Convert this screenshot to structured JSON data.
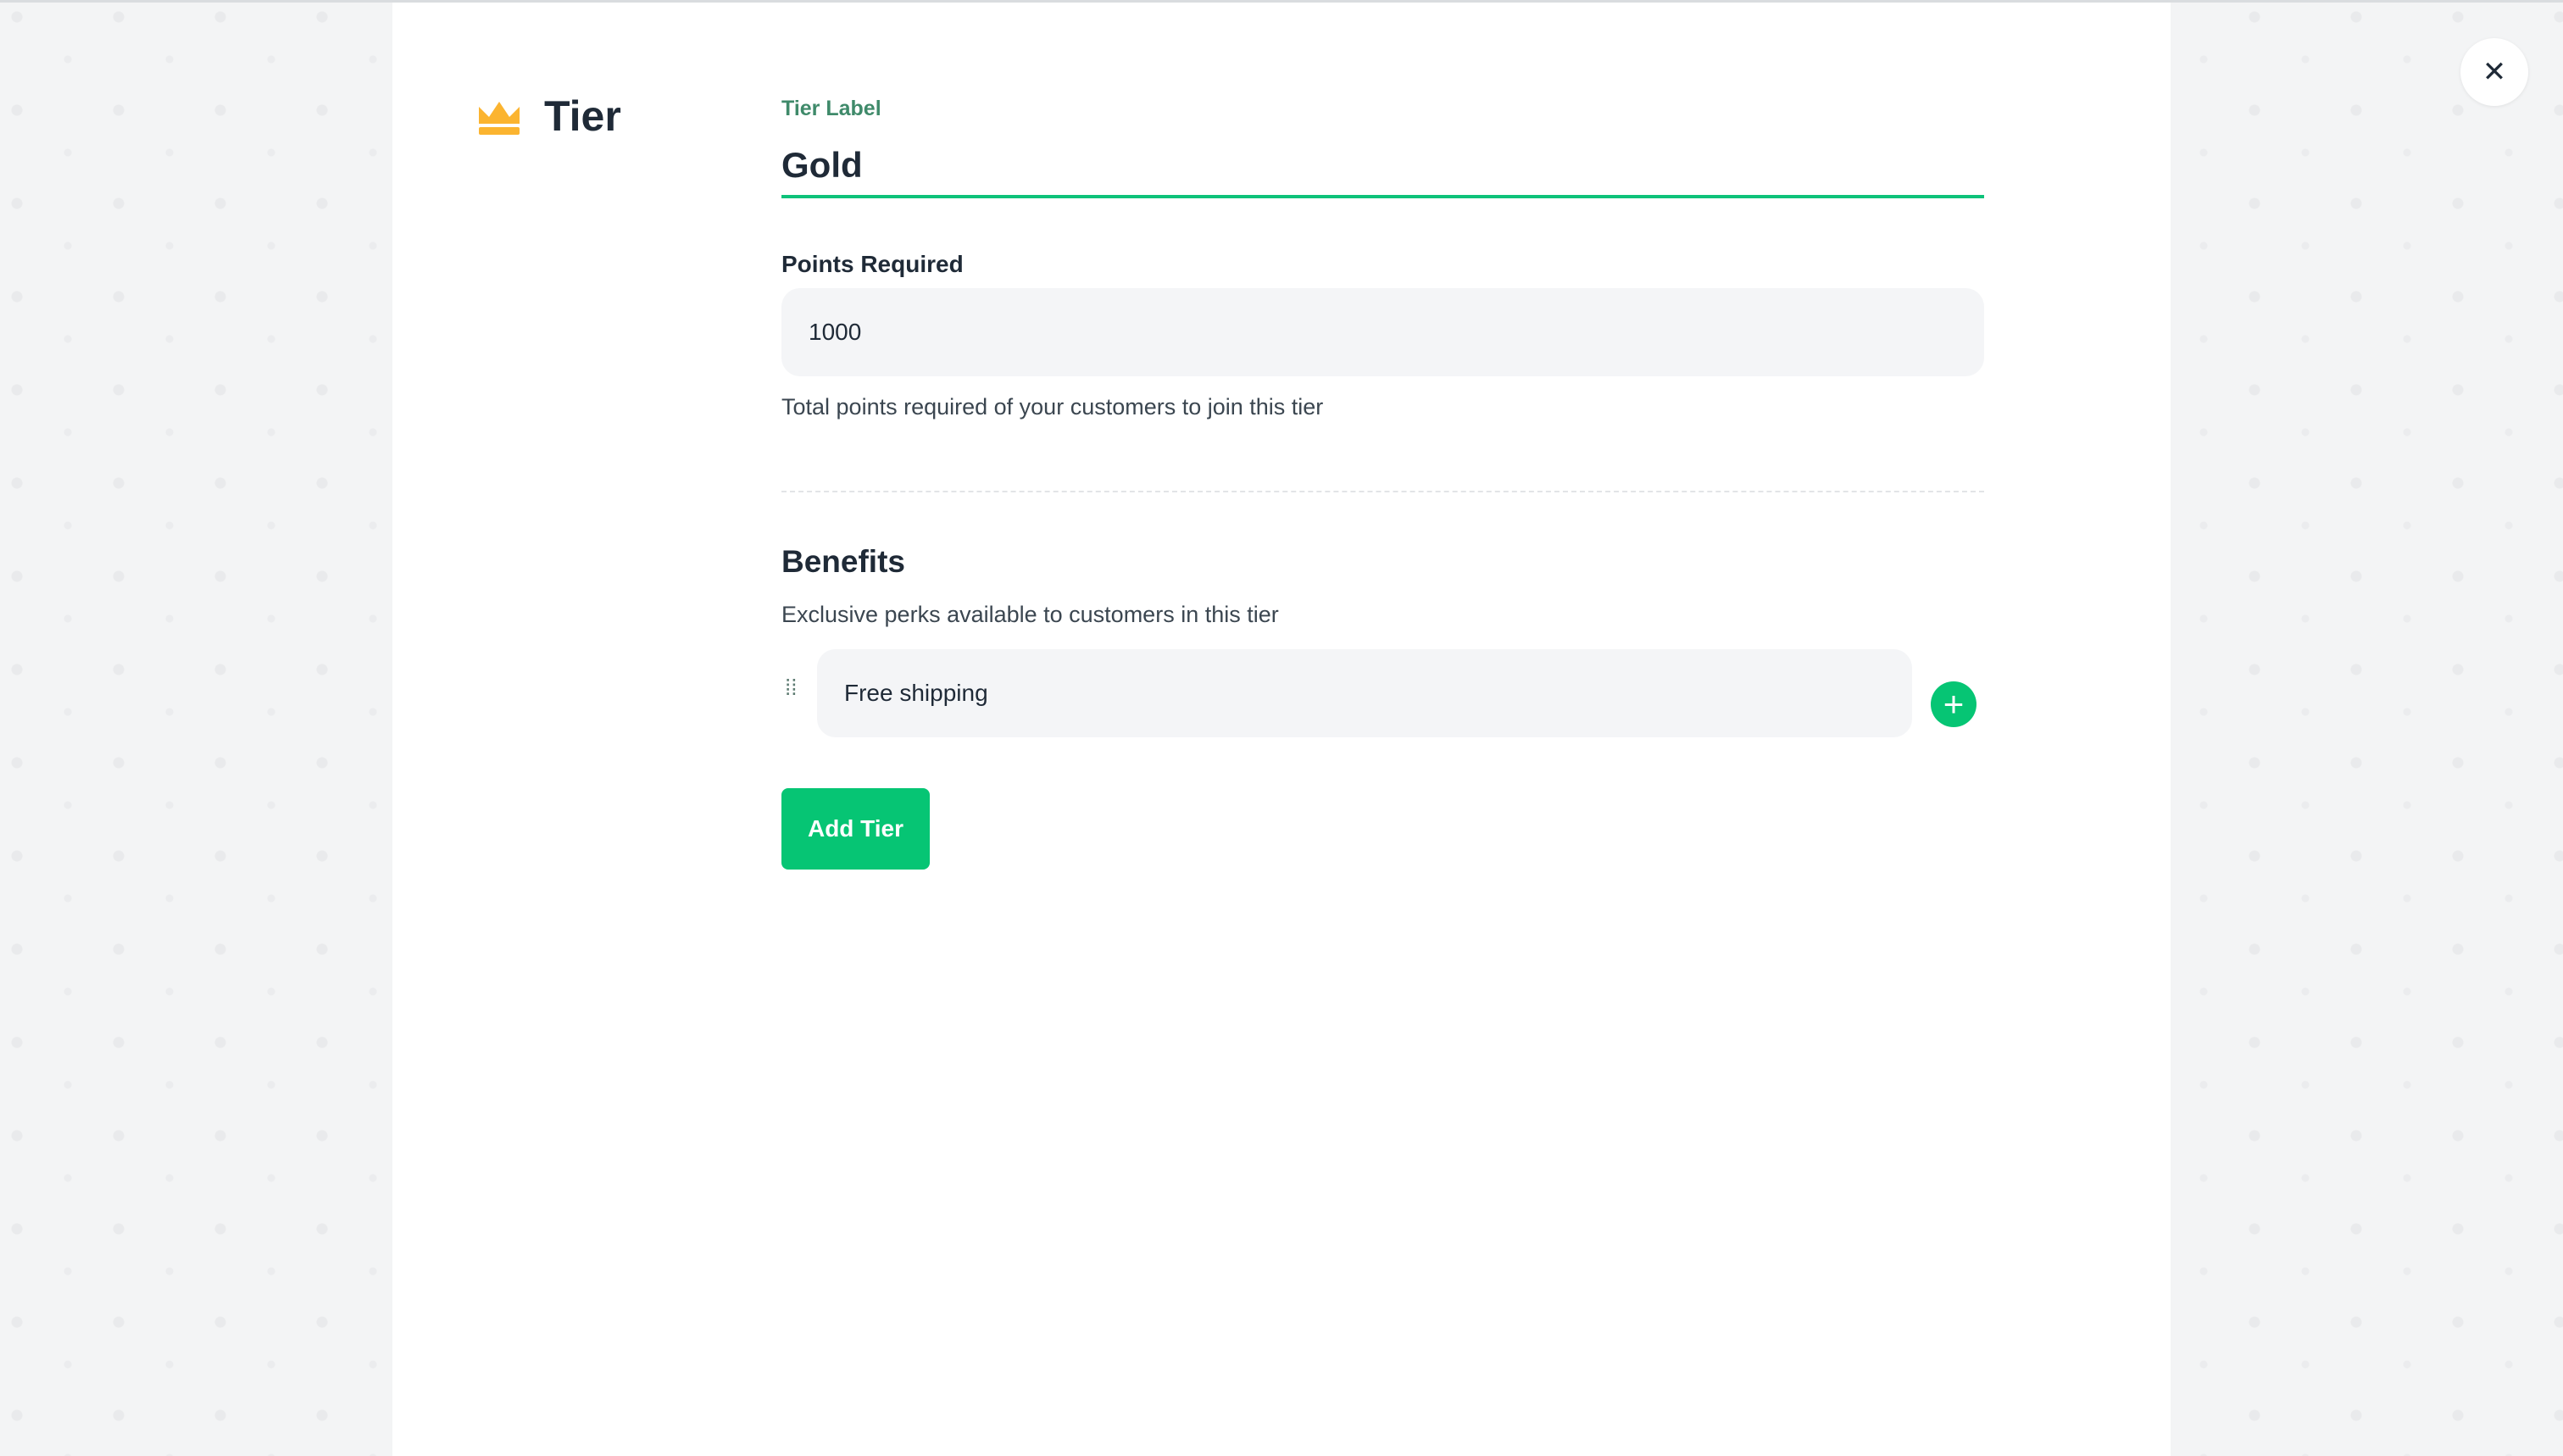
{
  "header": {
    "title": "Tier",
    "icon": "crown-icon",
    "icon_color": "#fbb430"
  },
  "tier_label": {
    "label": "Tier Label",
    "value": "Gold"
  },
  "points": {
    "label": "Points Required",
    "value": "1000",
    "help": "Total points required of your customers to join this tier"
  },
  "benefits": {
    "title": "Benefits",
    "description": "Exclusive perks available to customers in this tier",
    "items": [
      {
        "value": "Free shipping"
      }
    ],
    "add_icon": "+"
  },
  "actions": {
    "add_tier": "Add Tier",
    "close": "✕"
  },
  "colors": {
    "accent": "#06c574",
    "label_green": "#3f8a6a"
  }
}
